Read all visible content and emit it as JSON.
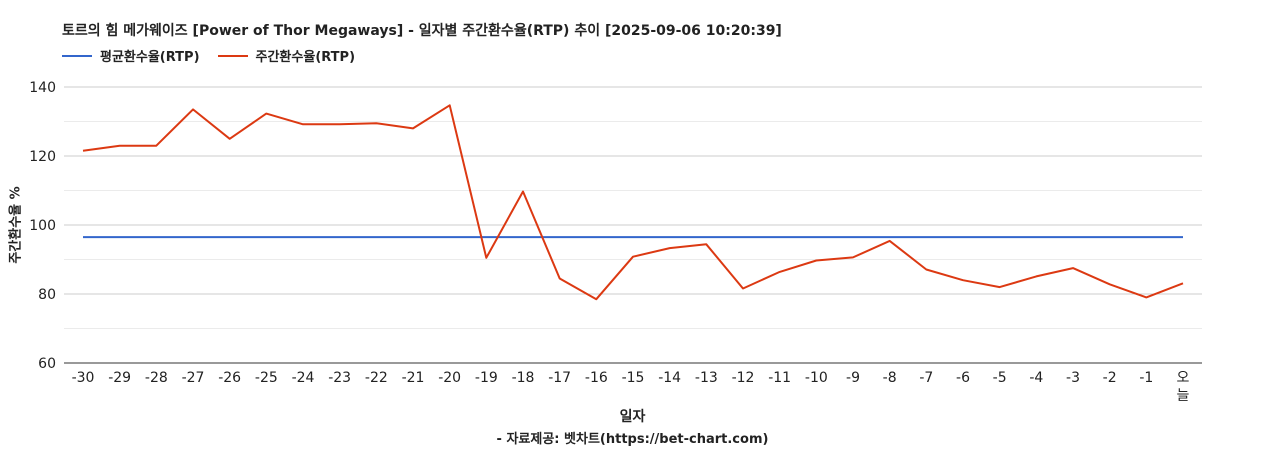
{
  "chart_data": {
    "type": "line",
    "title": "토르의 힘 메가웨이즈 [Power of Thor Megaways] - 일자별 주간환수율(RTP) 추이 [2025-09-06 10:20:39]",
    "xlabel": "일자",
    "ylabel": "주간환수율 %",
    "source": "- 자료제공: 벳차트(https://bet-chart.com)",
    "categories": [
      "-30",
      "-29",
      "-28",
      "-27",
      "-26",
      "-25",
      "-24",
      "-23",
      "-22",
      "-21",
      "-20",
      "-19",
      "-18",
      "-17",
      "-16",
      "-15",
      "-14",
      "-13",
      "-12",
      "-11",
      "-10",
      "-9",
      "-8",
      "-7",
      "-6",
      "-5",
      "-4",
      "-3",
      "-2",
      "-1",
      "오늘"
    ],
    "ylim": [
      60,
      140
    ],
    "yticks": [
      60,
      80,
      100,
      120,
      140
    ],
    "grid": true,
    "legend_position": "top-left",
    "series": [
      {
        "name": "평균환수율(RTP)",
        "color": "#3366cc",
        "values": [
          96.5,
          96.5,
          96.5,
          96.5,
          96.5,
          96.5,
          96.5,
          96.5,
          96.5,
          96.5,
          96.5,
          96.5,
          96.5,
          96.5,
          96.5,
          96.5,
          96.5,
          96.5,
          96.5,
          96.5,
          96.5,
          96.5,
          96.5,
          96.5,
          96.5,
          96.5,
          96.5,
          96.5,
          96.5,
          96.5,
          96.5
        ]
      },
      {
        "name": "주간환수율(RTP)",
        "color": "#dc3912",
        "values": [
          121.5,
          123,
          123,
          133.5,
          125,
          132.3,
          129.2,
          129.2,
          129.5,
          128,
          134.7,
          90.5,
          109.7,
          84.5,
          78.5,
          90.8,
          93.3,
          94.4,
          81.6,
          86.4,
          89.7,
          90.6,
          95.4,
          87.1,
          84,
          82,
          85.1,
          87.5,
          82.8,
          79,
          83.1
        ]
      }
    ]
  }
}
